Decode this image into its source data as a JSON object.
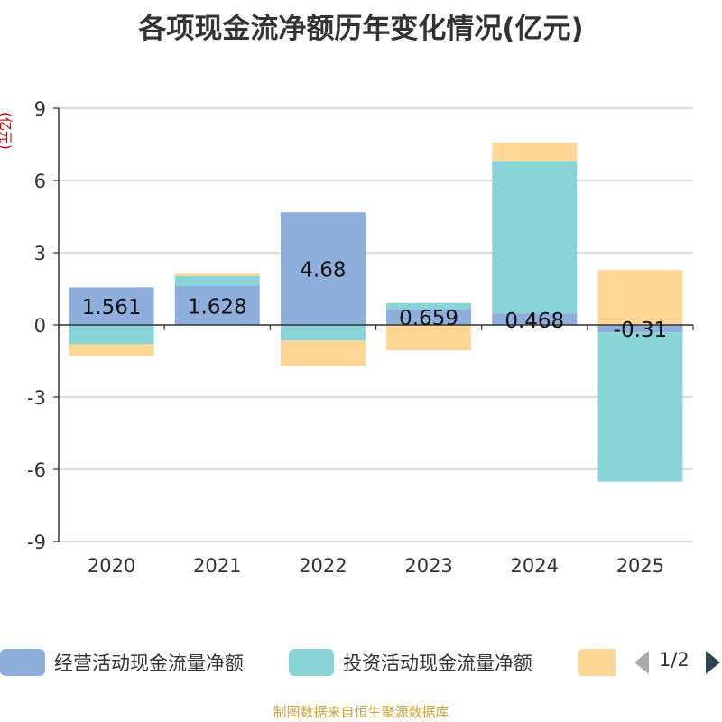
{
  "title": "各项现金流净额历年变化情况(亿元)",
  "unit_label": "(亿元)",
  "source": "制图数据来自恒生聚源数据库",
  "legend": {
    "items": [
      {
        "label": "经营活动现金流量净额",
        "color": "#8eaedb"
      },
      {
        "label": "投资活动现金流量净额",
        "color": "#88d4d7"
      },
      {
        "label": "",
        "color": "#fed796"
      }
    ],
    "pager": "1/2"
  },
  "chart_data": {
    "type": "bar",
    "stacked": true,
    "categories": [
      "2020",
      "2021",
      "2022",
      "2023",
      "2024",
      "2025"
    ],
    "ylim": [
      -9,
      9
    ],
    "yticks": [
      9,
      6,
      3,
      0,
      -3,
      -6,
      -9
    ],
    "grid": true,
    "series": [
      {
        "name": "经营活动现金流量净额",
        "color": "#8eaedb",
        "values": [
          1.561,
          1.628,
          4.68,
          0.659,
          0.468,
          -0.31
        ],
        "labels": [
          "1.561",
          "1.628",
          "4.68",
          "0.659",
          "0.468",
          "-0.31"
        ]
      },
      {
        "name": "投资活动现金流量净额",
        "color": "#88d4d7",
        "values": [
          -0.8,
          0.4,
          -0.65,
          0.25,
          6.35,
          -6.2
        ]
      },
      {
        "name": "",
        "color": "#fed796",
        "values": [
          -0.5,
          0.1,
          -1.05,
          -1.05,
          0.75,
          2.28
        ]
      }
    ]
  }
}
